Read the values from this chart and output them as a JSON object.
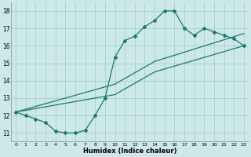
{
  "xlabel": "Humidex (Indice chaleur)",
  "xlim": [
    -0.5,
    23.5
  ],
  "ylim": [
    10.5,
    18.5
  ],
  "xticks": [
    0,
    1,
    2,
    3,
    4,
    5,
    6,
    7,
    8,
    9,
    10,
    11,
    12,
    13,
    14,
    15,
    16,
    17,
    18,
    19,
    20,
    21,
    22,
    23
  ],
  "yticks": [
    11,
    12,
    13,
    14,
    15,
    16,
    17,
    18
  ],
  "bg_color": "#cce8e8",
  "grid_color": "#aad4d4",
  "line_color": "#1a7a6a",
  "line1_x": [
    0,
    1,
    2,
    3,
    4,
    5,
    6,
    7,
    8,
    9,
    10,
    11,
    12,
    13,
    14,
    15,
    16,
    17,
    18,
    19,
    20,
    21,
    22,
    23
  ],
  "line1_y": [
    12.2,
    12.0,
    11.8,
    11.6,
    11.1,
    11.0,
    11.0,
    11.15,
    12.0,
    13.0,
    15.35,
    16.3,
    16.55,
    17.1,
    17.45,
    18.0,
    18.0,
    17.0,
    16.6,
    17.0,
    16.8,
    16.6,
    16.4,
    16.0
  ],
  "line2_x": [
    0,
    10,
    14,
    23
  ],
  "line2_y": [
    12.2,
    13.8,
    15.1,
    16.7
  ],
  "line3_x": [
    0,
    10,
    14,
    23
  ],
  "line3_y": [
    12.2,
    13.2,
    14.5,
    16.0
  ]
}
